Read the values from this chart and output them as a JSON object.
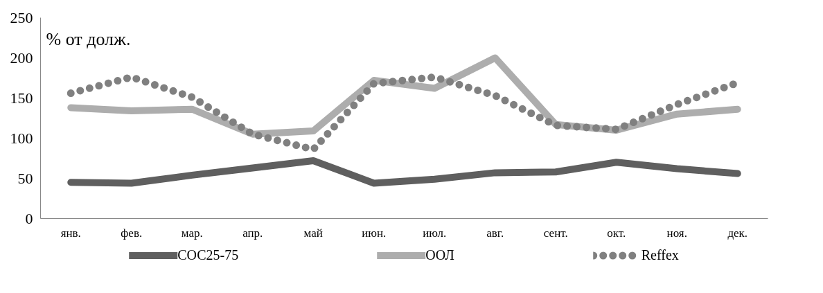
{
  "chart_data": {
    "type": "line",
    "ylabel": "% от долж.",
    "categories": [
      "янв.",
      "фев.",
      "мар.",
      "апр.",
      "май",
      "июн.",
      "июл.",
      "авг.",
      "сент.",
      "окт.",
      "ноя.",
      "дек."
    ],
    "series": [
      {
        "name": "СОС25-75",
        "color": "#5f5f5f",
        "line_style": "solid",
        "values": [
          45,
          44,
          54,
          63,
          72,
          44,
          49,
          57,
          58,
          70,
          62,
          56
        ]
      },
      {
        "name": "ООЛ",
        "color": "#adadad",
        "line_style": "solid",
        "values": [
          138,
          134,
          136,
          105,
          109,
          172,
          162,
          200,
          117,
          110,
          130,
          136
        ]
      },
      {
        "name": "Reffex",
        "color": "#808080",
        "line_style": "dotted",
        "values": [
          156,
          176,
          151,
          105,
          86,
          168,
          176,
          153,
          116,
          111,
          142,
          169
        ]
      }
    ],
    "ylim": [
      0,
      250
    ],
    "yticks": [
      0,
      50,
      100,
      150,
      200,
      250
    ],
    "grid": false,
    "legend": "bottom",
    "marker": "none"
  }
}
